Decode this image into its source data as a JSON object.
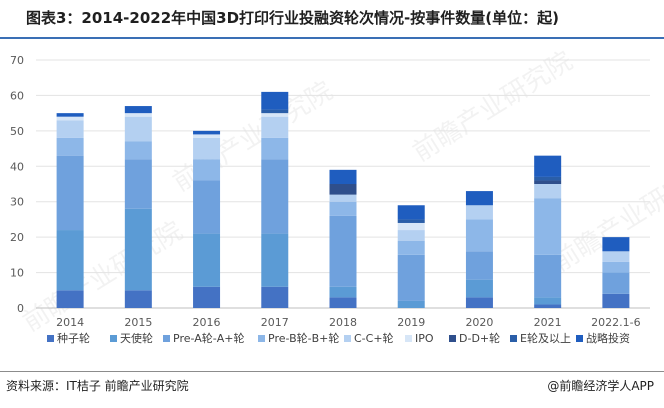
{
  "title": "图表3：2014-2022年中国3D打印行业投融资轮次情况-按事件数量(单位：起)",
  "source": "资料来源：IT桔子 前瞻产业研究院",
  "credit": "@前瞻经济学人APP",
  "watermark": "前瞻产业研究院",
  "colors": {
    "seed": "#4472c4",
    "angel": "#5b9bd5",
    "preA_A_Aplus": "#6fa1dd",
    "preB_B_Bplus": "#8db7e8",
    "C_Cplus": "#b4d0f1",
    "IPO": "#d7e6f7",
    "D_Dplus": "#2f4f8c",
    "E_plus": "#2a5ea8",
    "strategic": "#1f5dbf"
  },
  "chart_data": {
    "type": "bar",
    "stacked": true,
    "categories": [
      "2014",
      "2015",
      "2016",
      "2017",
      "2018",
      "2019",
      "2020",
      "2021",
      "2022.1-6"
    ],
    "ylim": [
      0,
      70
    ],
    "yticks": [
      0,
      10,
      20,
      30,
      40,
      50,
      60,
      70
    ],
    "grid": true,
    "legend_position": "bottom",
    "series": [
      {
        "name": "种子轮",
        "values": [
          5,
          5,
          6,
          6,
          3,
          0,
          3,
          1,
          4
        ]
      },
      {
        "name": "天使轮",
        "values": [
          17,
          23,
          15,
          15,
          3,
          2,
          5,
          2,
          0
        ]
      },
      {
        "name": "Pre-A轮-A+轮",
        "values": [
          21,
          14,
          15,
          21,
          20,
          13,
          8,
          12,
          6
        ]
      },
      {
        "name": "Pre-B轮-B+轮",
        "values": [
          5,
          5,
          6,
          6,
          4,
          4,
          9,
          16,
          3
        ]
      },
      {
        "name": "C-C+轮",
        "values": [
          5,
          7,
          6,
          6,
          2,
          3,
          4,
          4,
          3
        ]
      },
      {
        "name": "IPO",
        "values": [
          1,
          1,
          1,
          1,
          0,
          2,
          0,
          0,
          0
        ]
      },
      {
        "name": "D-D+轮",
        "values": [
          0,
          0,
          0,
          0,
          3,
          0,
          0,
          1,
          0
        ]
      },
      {
        "name": "E轮及以上",
        "values": [
          0,
          0,
          0,
          1,
          0,
          1,
          0,
          1,
          0
        ]
      },
      {
        "name": "战略投资",
        "values": [
          1,
          2,
          1,
          5,
          4,
          4,
          4,
          6,
          4
        ]
      }
    ]
  }
}
